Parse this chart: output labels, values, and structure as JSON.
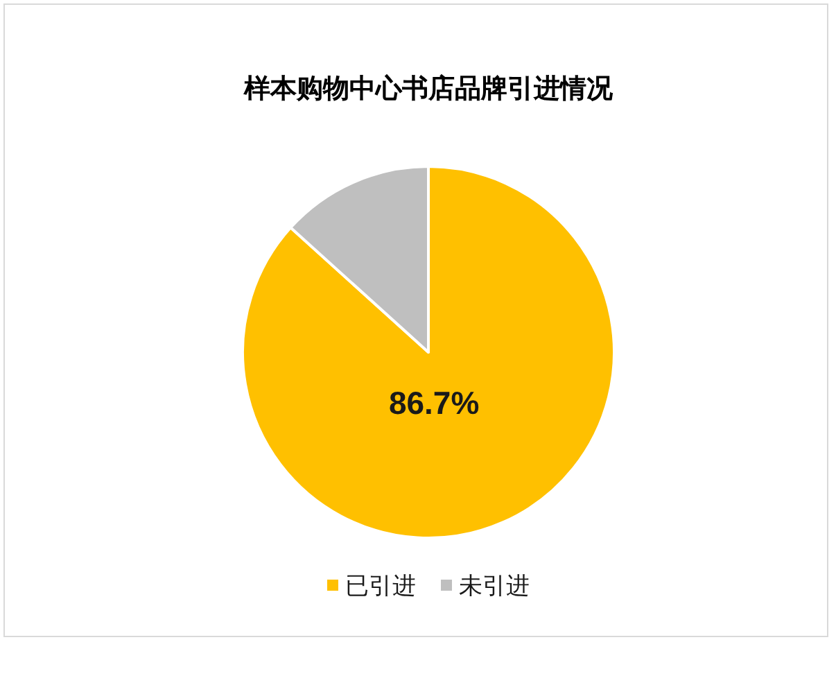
{
  "chart_data": {
    "type": "pie",
    "title": "样本购物中心书店品牌引进情况",
    "categories": [
      "已引进",
      "未引进"
    ],
    "values": [
      86.7,
      13.3
    ],
    "colors": [
      "#ffc000",
      "#bfbfbf"
    ],
    "value_labels": [
      "86.7%",
      null
    ],
    "legend": "bottom"
  }
}
